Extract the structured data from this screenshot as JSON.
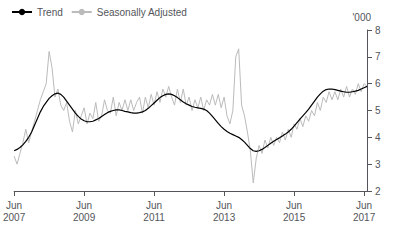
{
  "chart_data": {
    "type": "line",
    "y_label": "'000",
    "categories": [
      "Jun\n2007",
      null,
      null,
      null,
      null,
      null,
      null,
      null,
      null,
      null,
      null,
      null,
      null,
      null,
      null,
      null,
      null,
      null,
      null,
      null,
      null,
      null,
      null,
      null,
      "Jun\n2009",
      null,
      null,
      null,
      null,
      null,
      null,
      null,
      null,
      null,
      null,
      null,
      null,
      null,
      null,
      null,
      null,
      null,
      null,
      null,
      null,
      null,
      null,
      null,
      "Jun\n2011",
      null,
      null,
      null,
      null,
      null,
      null,
      null,
      null,
      null,
      null,
      null,
      null,
      null,
      null,
      null,
      null,
      null,
      null,
      null,
      null,
      null,
      null,
      null,
      "Jun\n2013",
      null,
      null,
      null,
      null,
      null,
      null,
      null,
      null,
      null,
      null,
      null,
      null,
      null,
      null,
      null,
      null,
      null,
      null,
      null,
      null,
      null,
      null,
      null,
      "Jun\n2015",
      null,
      null,
      null,
      null,
      null,
      null,
      null,
      null,
      null,
      null,
      null,
      null,
      null,
      null,
      null,
      null,
      null,
      null,
      null,
      null,
      null,
      null,
      null,
      "Jun\n2017",
      null
    ],
    "ylim": [
      2,
      8
    ],
    "yticks": [
      2,
      3,
      4,
      5,
      6,
      7,
      8
    ],
    "grid": false,
    "legend": "upper left",
    "series": [
      {
        "name": "Trend",
        "color": "#000000",
        "values": [
          3.5,
          3.55,
          3.62,
          3.72,
          3.85,
          4.0,
          4.2,
          4.45,
          4.7,
          4.95,
          5.15,
          5.3,
          5.45,
          5.55,
          5.62,
          5.65,
          5.6,
          5.5,
          5.35,
          5.2,
          5.05,
          4.9,
          4.78,
          4.68,
          4.62,
          4.58,
          4.58,
          4.6,
          4.65,
          4.7,
          4.78,
          4.85,
          4.92,
          4.97,
          5.0,
          5.02,
          5.02,
          5.0,
          4.97,
          4.95,
          4.92,
          4.9,
          4.9,
          4.92,
          4.95,
          5.0,
          5.08,
          5.18,
          5.28,
          5.38,
          5.48,
          5.55,
          5.6,
          5.62,
          5.6,
          5.55,
          5.48,
          5.4,
          5.32,
          5.25,
          5.2,
          5.15,
          5.12,
          5.1,
          5.08,
          5.05,
          5.0,
          4.9,
          4.78,
          4.65,
          4.52,
          4.4,
          4.3,
          4.22,
          4.15,
          4.1,
          4.05,
          4.0,
          3.92,
          3.82,
          3.7,
          3.58,
          3.5,
          3.48,
          3.5,
          3.55,
          3.62,
          3.7,
          3.78,
          3.85,
          3.92,
          3.98,
          4.05,
          4.12,
          4.2,
          4.3,
          4.42,
          4.55,
          4.68,
          4.8,
          4.92,
          5.05,
          5.2,
          5.35,
          5.5,
          5.62,
          5.72,
          5.78,
          5.8,
          5.8,
          5.78,
          5.75,
          5.72,
          5.7,
          5.68,
          5.68,
          5.7,
          5.72,
          5.75,
          5.8,
          5.85,
          5.9
        ]
      },
      {
        "name": "Seasonally Adjusted",
        "color": "#bbbbbb",
        "values": [
          3.3,
          3.0,
          3.4,
          3.8,
          4.3,
          3.8,
          4.2,
          4.6,
          5.0,
          5.4,
          5.7,
          6.0,
          7.2,
          6.6,
          5.5,
          5.8,
          5.2,
          5.0,
          5.3,
          4.6,
          4.2,
          5.0,
          4.5,
          4.8,
          5.1,
          4.5,
          4.9,
          4.7,
          5.3,
          4.6,
          4.8,
          5.4,
          5.0,
          4.9,
          5.5,
          4.8,
          5.3,
          5.0,
          5.4,
          5.0,
          5.4,
          5.0,
          5.3,
          5.5,
          4.9,
          5.5,
          5.1,
          5.6,
          5.2,
          5.7,
          5.3,
          5.8,
          5.5,
          5.9,
          5.5,
          5.2,
          5.8,
          5.3,
          5.8,
          5.2,
          5.5,
          5.0,
          5.4,
          5.1,
          5.5,
          5.0,
          5.4,
          5.2,
          5.6,
          5.2,
          5.6,
          5.1,
          5.5,
          4.8,
          4.5,
          5.0,
          7.0,
          7.3,
          5.2,
          4.8,
          4.2,
          3.5,
          2.3,
          3.2,
          3.7,
          3.4,
          3.9,
          3.6,
          4.0,
          3.7,
          4.0,
          3.8,
          4.2,
          3.9,
          4.3,
          4.0,
          4.5,
          4.3,
          4.7,
          4.4,
          4.8,
          4.6,
          5.0,
          4.8,
          5.3,
          5.0,
          5.5,
          5.3,
          5.7,
          5.4,
          5.7,
          5.4,
          5.8,
          5.5,
          5.9,
          5.5,
          5.8,
          5.6,
          6.0,
          5.7,
          6.0,
          5.9
        ]
      }
    ]
  }
}
